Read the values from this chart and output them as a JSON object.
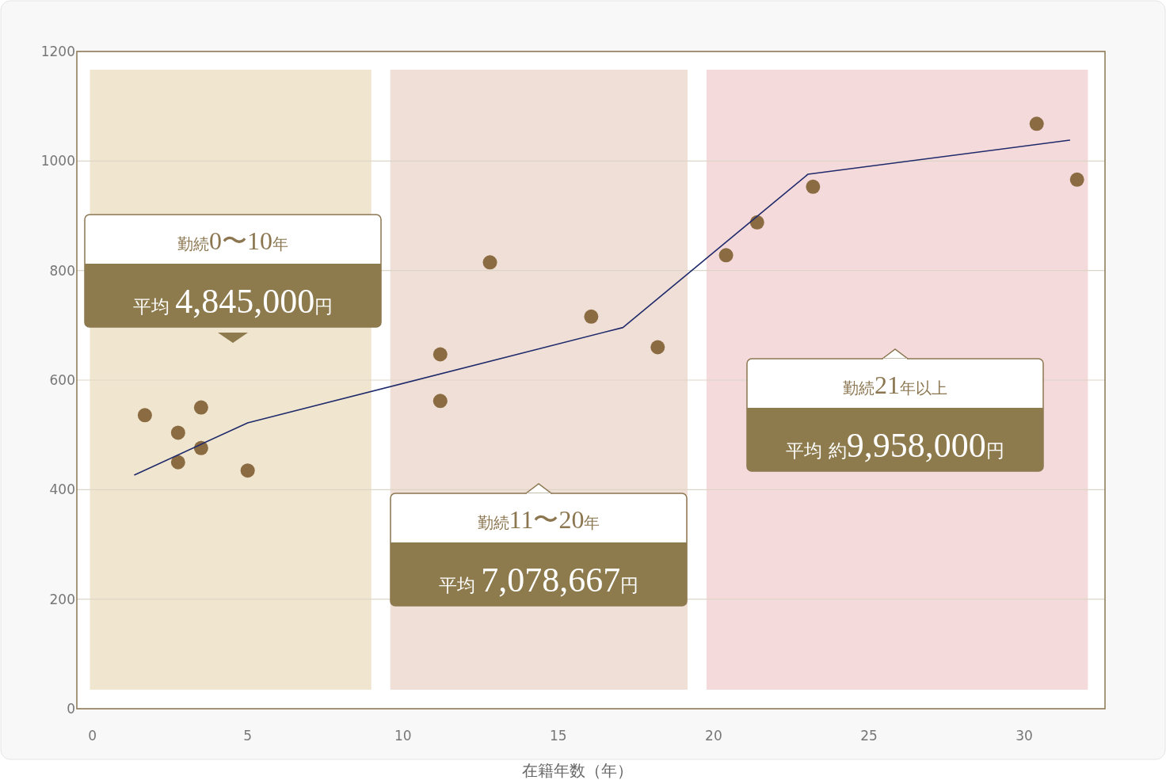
{
  "chart_data": {
    "type": "scatter",
    "xlabel": "在籍年数（年）",
    "xlim": [
      -0.5,
      32.6
    ],
    "xticks": [
      0,
      5,
      10,
      15,
      20,
      25,
      30
    ],
    "ylim": [
      0,
      1200
    ],
    "yticks": [
      0,
      200,
      400,
      600,
      800,
      1000,
      1200
    ],
    "grid": "y",
    "series": [
      {
        "marker": "circle",
        "color": "#8b6c42",
        "x": [
          1.69,
          2.76,
          2.76,
          3.5,
          3.5,
          5.0,
          11.2,
          11.2,
          12.8,
          16.06,
          18.2,
          20.4,
          21.4,
          23.2,
          30.4,
          31.7
        ],
        "values": [
          536,
          504,
          450,
          550,
          476,
          435,
          647,
          562,
          815,
          716,
          660,
          828,
          888,
          953,
          1068,
          966
        ]
      },
      {
        "type": "line",
        "color": "#1f2a6b",
        "x": [
          1.36,
          5.0,
          17.08,
          23.04,
          31.46
        ],
        "values": [
          427,
          522,
          696,
          976,
          1038
        ]
      }
    ],
    "bands": [
      {
        "axis": "x",
        "from": -0.08,
        "to": 8.98,
        "label": "勤続0〜10年",
        "color": "#f0e6cf"
      },
      {
        "axis": "x",
        "from": 9.59,
        "to": 19.16,
        "label": "勤続11〜20年",
        "color": "#f0dfd6"
      },
      {
        "axis": "x",
        "from": 19.77,
        "to": 32.05,
        "label": "勤続21年以上",
        "color": "#f5dadb"
      }
    ],
    "annotations": [
      "平均 4,845,000円",
      "平均 7,078,667円",
      "平均 約9,958,000円"
    ]
  }
}
